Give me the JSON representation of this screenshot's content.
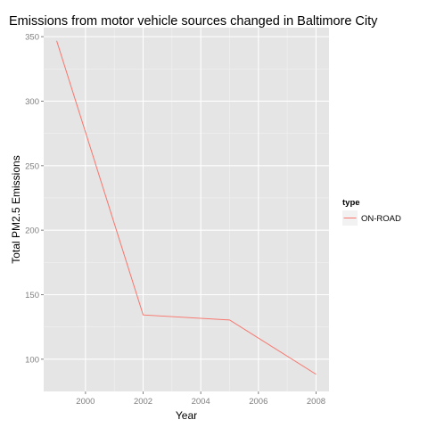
{
  "chart_data": {
    "type": "line",
    "title": "Emissions from motor vehicle sources changed in Baltimore City",
    "xlabel": "Year",
    "ylabel": "Total PM2.5 Emissions",
    "x": [
      1999,
      2002,
      2005,
      2008
    ],
    "x_ticks": [
      "2000",
      "2002",
      "2004",
      "2006",
      "2008"
    ],
    "y_ticks": [
      "100",
      "150",
      "200",
      "250",
      "300",
      "350"
    ],
    "xlim": [
      1998.55,
      2008.45
    ],
    "ylim": [
      75,
      357
    ],
    "grid": true,
    "legend_position": "right",
    "legend_title": "type",
    "series": [
      {
        "name": "ON-ROAD",
        "color": "#f8766d",
        "values": [
          346.8,
          134.3,
          130.4,
          88.3
        ]
      }
    ],
    "panel_color": "#e5e5e5",
    "grid_color": "#ffffff"
  }
}
